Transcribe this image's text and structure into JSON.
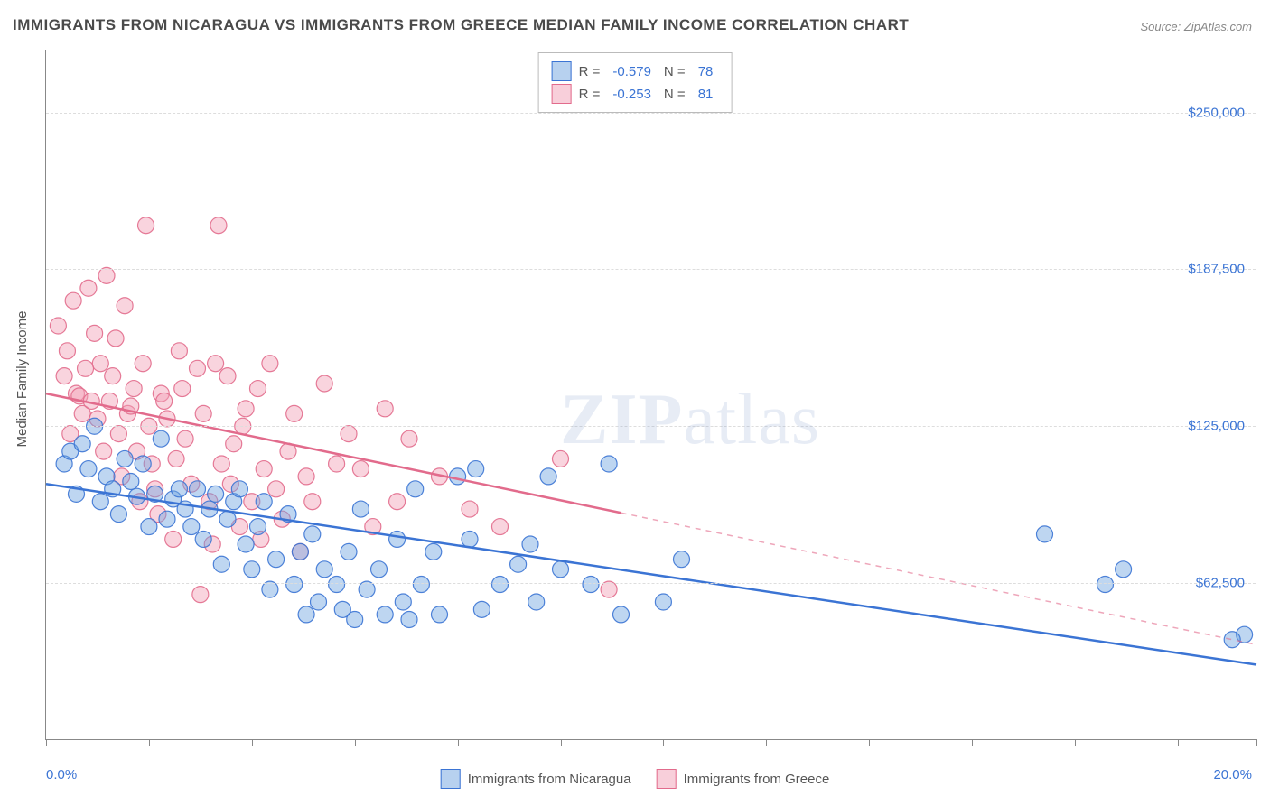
{
  "title": "IMMIGRANTS FROM NICARAGUA VS IMMIGRANTS FROM GREECE MEDIAN FAMILY INCOME CORRELATION CHART",
  "source": "Source: ZipAtlas.com",
  "watermark_a": "ZIP",
  "watermark_b": "atlas",
  "yaxis_label": "Median Family Income",
  "chart": {
    "type": "scatter",
    "background_color": "#ffffff",
    "grid_color": "#dddddd",
    "axis_color": "#888888",
    "xlim": [
      0,
      20
    ],
    "ylim": [
      0,
      275000
    ],
    "yticks": [
      62500,
      125000,
      187500,
      250000
    ],
    "ytick_labels": [
      "$62,500",
      "$125,000",
      "$187,500",
      "$250,000"
    ],
    "xticks": [
      0,
      1.7,
      3.4,
      5.1,
      6.8,
      8.5,
      10.2,
      11.9,
      13.6,
      15.3,
      17.0,
      18.7,
      20.0
    ],
    "xtick_labels": {
      "0": "0.0%",
      "20.0": "20.0%"
    },
    "marker_radius": 9,
    "marker_opacity": 0.45,
    "marker_stroke_opacity": 0.9,
    "label_fontsize": 15,
    "label_color": "#3b74d4",
    "title_fontsize": 17,
    "title_color": "#4a4a4a"
  },
  "series": [
    {
      "name": "Immigrants from Nicaragua",
      "color": "#6fa3e0",
      "stroke": "#3b74d4",
      "R": "-0.579",
      "N": "78",
      "trend": {
        "x1": 0,
        "y1": 102000,
        "x2": 20,
        "y2": 30000,
        "solid_until_x": 20
      },
      "points": [
        [
          0.3,
          110000
        ],
        [
          0.4,
          115000
        ],
        [
          0.5,
          98000
        ],
        [
          0.6,
          118000
        ],
        [
          0.7,
          108000
        ],
        [
          0.8,
          125000
        ],
        [
          0.9,
          95000
        ],
        [
          1.0,
          105000
        ],
        [
          1.1,
          100000
        ],
        [
          1.2,
          90000
        ],
        [
          1.3,
          112000
        ],
        [
          1.4,
          103000
        ],
        [
          1.5,
          97000
        ],
        [
          1.6,
          110000
        ],
        [
          1.7,
          85000
        ],
        [
          1.8,
          98000
        ],
        [
          1.9,
          120000
        ],
        [
          2.0,
          88000
        ],
        [
          2.1,
          96000
        ],
        [
          2.2,
          100000
        ],
        [
          2.3,
          92000
        ],
        [
          2.4,
          85000
        ],
        [
          2.5,
          100000
        ],
        [
          2.6,
          80000
        ],
        [
          2.7,
          92000
        ],
        [
          2.8,
          98000
        ],
        [
          2.9,
          70000
        ],
        [
          3.0,
          88000
        ],
        [
          3.1,
          95000
        ],
        [
          3.2,
          100000
        ],
        [
          3.3,
          78000
        ],
        [
          3.4,
          68000
        ],
        [
          3.5,
          85000
        ],
        [
          3.6,
          95000
        ],
        [
          3.7,
          60000
        ],
        [
          3.8,
          72000
        ],
        [
          4.0,
          90000
        ],
        [
          4.1,
          62000
        ],
        [
          4.2,
          75000
        ],
        [
          4.3,
          50000
        ],
        [
          4.4,
          82000
        ],
        [
          4.5,
          55000
        ],
        [
          4.6,
          68000
        ],
        [
          4.8,
          62000
        ],
        [
          4.9,
          52000
        ],
        [
          5.0,
          75000
        ],
        [
          5.1,
          48000
        ],
        [
          5.2,
          92000
        ],
        [
          5.3,
          60000
        ],
        [
          5.5,
          68000
        ],
        [
          5.6,
          50000
        ],
        [
          5.8,
          80000
        ],
        [
          5.9,
          55000
        ],
        [
          6.0,
          48000
        ],
        [
          6.1,
          100000
        ],
        [
          6.2,
          62000
        ],
        [
          6.4,
          75000
        ],
        [
          6.5,
          50000
        ],
        [
          6.8,
          105000
        ],
        [
          7.0,
          80000
        ],
        [
          7.1,
          108000
        ],
        [
          7.2,
          52000
        ],
        [
          7.5,
          62000
        ],
        [
          7.8,
          70000
        ],
        [
          8.0,
          78000
        ],
        [
          8.1,
          55000
        ],
        [
          8.3,
          105000
        ],
        [
          8.5,
          68000
        ],
        [
          9.0,
          62000
        ],
        [
          9.3,
          110000
        ],
        [
          9.5,
          50000
        ],
        [
          10.2,
          55000
        ],
        [
          10.5,
          72000
        ],
        [
          16.5,
          82000
        ],
        [
          17.5,
          62000
        ],
        [
          17.8,
          68000
        ],
        [
          19.8,
          42000
        ],
        [
          19.6,
          40000
        ]
      ]
    },
    {
      "name": "Immigrants from Greece",
      "color": "#f2a0b5",
      "stroke": "#e26b8c",
      "R": "-0.253",
      "N": "81",
      "trend": {
        "x1": 0,
        "y1": 138000,
        "x2": 20,
        "y2": 38000,
        "solid_until_x": 9.5
      },
      "points": [
        [
          0.2,
          165000
        ],
        [
          0.3,
          145000
        ],
        [
          0.35,
          155000
        ],
        [
          0.4,
          122000
        ],
        [
          0.45,
          175000
        ],
        [
          0.5,
          138000
        ],
        [
          0.55,
          137000
        ],
        [
          0.6,
          130000
        ],
        [
          0.65,
          148000
        ],
        [
          0.7,
          180000
        ],
        [
          0.75,
          135000
        ],
        [
          0.8,
          162000
        ],
        [
          0.85,
          128000
        ],
        [
          0.9,
          150000
        ],
        [
          0.95,
          115000
        ],
        [
          1.0,
          185000
        ],
        [
          1.05,
          135000
        ],
        [
          1.1,
          145000
        ],
        [
          1.15,
          160000
        ],
        [
          1.2,
          122000
        ],
        [
          1.25,
          105000
        ],
        [
          1.3,
          173000
        ],
        [
          1.35,
          130000
        ],
        [
          1.4,
          133000
        ],
        [
          1.45,
          140000
        ],
        [
          1.5,
          115000
        ],
        [
          1.55,
          95000
        ],
        [
          1.6,
          150000
        ],
        [
          1.65,
          205000
        ],
        [
          1.7,
          125000
        ],
        [
          1.75,
          110000
        ],
        [
          1.8,
          100000
        ],
        [
          1.85,
          90000
        ],
        [
          1.9,
          138000
        ],
        [
          1.95,
          135000
        ],
        [
          2.0,
          128000
        ],
        [
          2.1,
          80000
        ],
        [
          2.15,
          112000
        ],
        [
          2.2,
          155000
        ],
        [
          2.25,
          140000
        ],
        [
          2.3,
          120000
        ],
        [
          2.4,
          102000
        ],
        [
          2.5,
          148000
        ],
        [
          2.55,
          58000
        ],
        [
          2.6,
          130000
        ],
        [
          2.7,
          95000
        ],
        [
          2.75,
          78000
        ],
        [
          2.8,
          150000
        ],
        [
          2.85,
          205000
        ],
        [
          2.9,
          110000
        ],
        [
          3.0,
          145000
        ],
        [
          3.05,
          102000
        ],
        [
          3.1,
          118000
        ],
        [
          3.2,
          85000
        ],
        [
          3.25,
          125000
        ],
        [
          3.3,
          132000
        ],
        [
          3.4,
          95000
        ],
        [
          3.5,
          140000
        ],
        [
          3.55,
          80000
        ],
        [
          3.6,
          108000
        ],
        [
          3.7,
          150000
        ],
        [
          3.8,
          100000
        ],
        [
          3.9,
          88000
        ],
        [
          4.0,
          115000
        ],
        [
          4.1,
          130000
        ],
        [
          4.2,
          75000
        ],
        [
          4.3,
          105000
        ],
        [
          4.4,
          95000
        ],
        [
          4.6,
          142000
        ],
        [
          4.8,
          110000
        ],
        [
          5.0,
          122000
        ],
        [
          5.2,
          108000
        ],
        [
          5.4,
          85000
        ],
        [
          5.6,
          132000
        ],
        [
          5.8,
          95000
        ],
        [
          6.0,
          120000
        ],
        [
          6.5,
          105000
        ],
        [
          7.0,
          92000
        ],
        [
          7.5,
          85000
        ],
        [
          8.5,
          112000
        ],
        [
          9.3,
          60000
        ]
      ]
    }
  ],
  "legend": {
    "R_label": "R =",
    "N_label": "N =",
    "series1_label": "Immigrants from Nicaragua",
    "series2_label": "Immigrants from Greece"
  }
}
